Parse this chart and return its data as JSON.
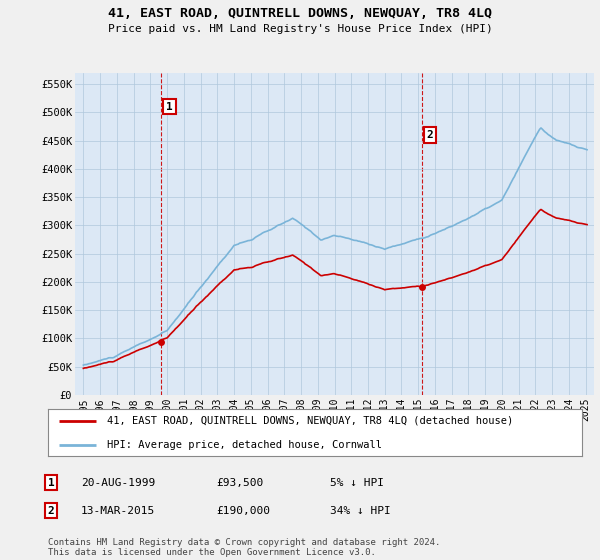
{
  "title": "41, EAST ROAD, QUINTRELL DOWNS, NEWQUAY, TR8 4LQ",
  "subtitle": "Price paid vs. HM Land Registry's House Price Index (HPI)",
  "legend_line1": "41, EAST ROAD, QUINTRELL DOWNS, NEWQUAY, TR8 4LQ (detached house)",
  "legend_line2": "HPI: Average price, detached house, Cornwall",
  "footnote": "Contains HM Land Registry data © Crown copyright and database right 2024.\nThis data is licensed under the Open Government Licence v3.0.",
  "transactions": [
    {
      "label": "1",
      "date": "20-AUG-1999",
      "price": 93500,
      "pct": "5% ↓ HPI",
      "x": 1999.64
    },
    {
      "label": "2",
      "date": "13-MAR-2015",
      "price": 190000,
      "pct": "34% ↓ HPI",
      "x": 2015.2
    }
  ],
  "table_rows": [
    [
      "1",
      "20-AUG-1999",
      "£93,500",
      "5% ↓ HPI"
    ],
    [
      "2",
      "13-MAR-2015",
      "£190,000",
      "34% ↓ HPI"
    ]
  ],
  "hpi_color": "#7ab4d8",
  "price_color": "#cc0000",
  "dashed_color": "#cc0000",
  "background_color": "#f0f0f0",
  "plot_bg_color": "#dce8f5",
  "grid_color": "#b0c8dc",
  "ylim": [
    0,
    570000
  ],
  "xlim": [
    1994.5,
    2025.5
  ],
  "yticks": [
    0,
    50000,
    100000,
    150000,
    200000,
    250000,
    300000,
    350000,
    400000,
    450000,
    500000,
    550000
  ],
  "ytick_labels": [
    "£0",
    "£50K",
    "£100K",
    "£150K",
    "£200K",
    "£250K",
    "£300K",
    "£350K",
    "£400K",
    "£450K",
    "£500K",
    "£550K"
  ]
}
